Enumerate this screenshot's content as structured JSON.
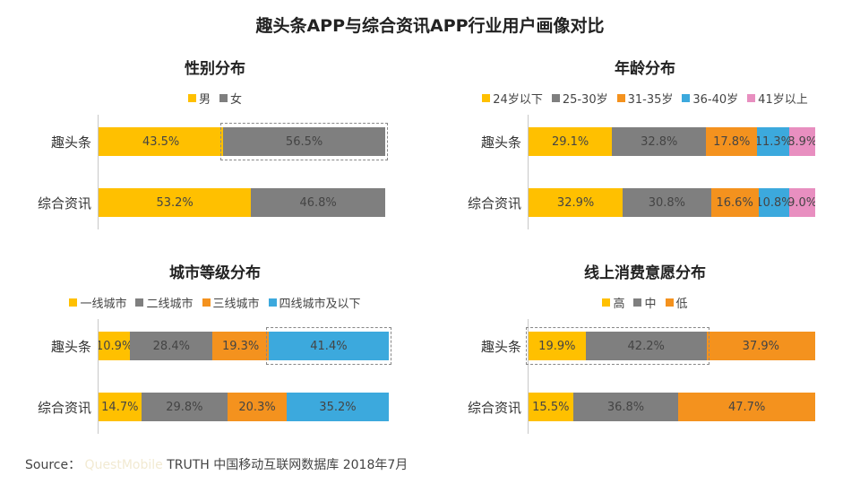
{
  "title": "趣头条APP与综合资讯APP行业用户画像对比",
  "source": {
    "prefix": "Source：",
    "faint": "QuestMobile",
    "suffix": "TRUTH 中国移动互联网数据库 2018年7月"
  },
  "chart_data": [
    {
      "id": "gender",
      "type": "bar",
      "stacked": true,
      "orientation": "horizontal",
      "title": "性别分布",
      "unit": "%",
      "categories": [
        "趣头条",
        "综合资讯"
      ],
      "series": [
        {
          "name": "男",
          "color": "#FFC000",
          "values": [
            43.5,
            53.2
          ]
        },
        {
          "name": "女",
          "color": "#7F7F7F",
          "values": [
            56.5,
            46.8
          ]
        }
      ],
      "value_labels": [
        [
          "43.5%",
          "56.5%"
        ],
        [
          "53.2%",
          "46.8%"
        ]
      ],
      "highlight": {
        "row": 0,
        "segments": [
          1
        ]
      }
    },
    {
      "id": "age",
      "type": "bar",
      "stacked": true,
      "orientation": "horizontal",
      "title": "年龄分布",
      "unit": "%",
      "categories": [
        "趣头条",
        "综合资讯"
      ],
      "series": [
        {
          "name": "24岁以下",
          "color": "#FFC000",
          "values": [
            29.1,
            32.9
          ]
        },
        {
          "name": "25-30岁",
          "color": "#7F7F7F",
          "values": [
            32.8,
            30.8
          ]
        },
        {
          "name": "31-35岁",
          "color": "#F4921E",
          "values": [
            17.8,
            16.6
          ]
        },
        {
          "name": "36-40岁",
          "color": "#3CA9DD",
          "values": [
            11.3,
            10.8
          ]
        },
        {
          "name": "41岁以上",
          "color": "#E88FC0",
          "values": [
            8.9,
            9.0
          ]
        }
      ],
      "value_labels": [
        [
          "29.1%",
          "32.8%",
          "17.8%",
          "11.3%",
          "8.9%"
        ],
        [
          "32.9%",
          "30.8%",
          "16.6%",
          "10.8%",
          "9.0%"
        ]
      ]
    },
    {
      "id": "city",
      "type": "bar",
      "stacked": true,
      "orientation": "horizontal",
      "title": "城市等级分布",
      "unit": "%",
      "categories": [
        "趣头条",
        "综合资讯"
      ],
      "series": [
        {
          "name": "一线城市",
          "color": "#FFC000",
          "values": [
            10.9,
            14.7
          ]
        },
        {
          "name": "二线城市",
          "color": "#7F7F7F",
          "values": [
            28.4,
            29.8
          ]
        },
        {
          "name": "三线城市",
          "color": "#F4921E",
          "values": [
            19.3,
            20.3
          ]
        },
        {
          "name": "四线城市及以下",
          "color": "#3CA9DD",
          "values": [
            41.4,
            35.2
          ]
        }
      ],
      "value_labels": [
        [
          "10.9%",
          "28.4%",
          "19.3%",
          "41.4%"
        ],
        [
          "14.7%",
          "29.8%",
          "20.3%",
          "35.2%"
        ]
      ],
      "highlight": {
        "row": 0,
        "segments": [
          3
        ]
      }
    },
    {
      "id": "spend",
      "type": "bar",
      "stacked": true,
      "orientation": "horizontal",
      "title": "线上消费意愿分布",
      "unit": "%",
      "categories": [
        "趣头条",
        "综合资讯"
      ],
      "series": [
        {
          "name": "高",
          "color": "#FFC000",
          "values": [
            19.9,
            15.5
          ]
        },
        {
          "name": "中",
          "color": "#7F7F7F",
          "values": [
            42.2,
            36.8
          ]
        },
        {
          "name": "低",
          "color": "#F4921E",
          "values": [
            37.9,
            47.7
          ]
        }
      ],
      "value_labels": [
        [
          "19.9%",
          "42.2%",
          "37.9%"
        ],
        [
          "15.5%",
          "36.8%",
          "47.7%"
        ]
      ],
      "highlight": {
        "row": 0,
        "segments": [
          0,
          1
        ]
      }
    }
  ]
}
